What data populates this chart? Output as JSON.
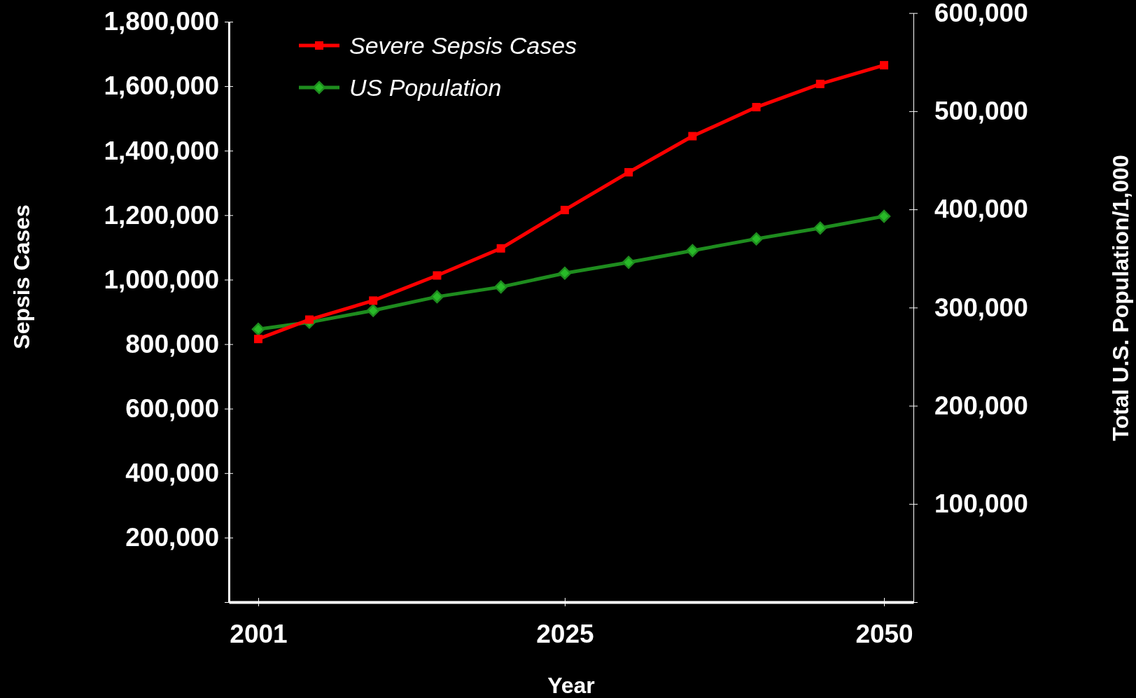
{
  "chart_data": {
    "type": "line",
    "xlabel": "Year",
    "ylabel": "Sepsis Cases",
    "y2label": "Total U.S. Population/1,000",
    "x": [
      2001,
      2005,
      2010,
      2015,
      2020,
      2025,
      2030,
      2035,
      2040,
      2045,
      2050
    ],
    "xlim": [
      1998.7,
      2052.3
    ],
    "xticks": [
      2001,
      2025,
      2050
    ],
    "ylim": [
      0,
      1800000
    ],
    "yticks": [
      {
        "value": 0,
        "label": null
      },
      {
        "value": 200000,
        "label": "200,000"
      },
      {
        "value": 400000,
        "label": "400,000"
      },
      {
        "value": 600000,
        "label": "600,000"
      },
      {
        "value": 800000,
        "label": "800,000"
      },
      {
        "value": 1000000,
        "label": "1,000,000"
      },
      {
        "value": 1200000,
        "label": "1,200,000"
      },
      {
        "value": 1400000,
        "label": "1,400,000"
      },
      {
        "value": 1600000,
        "label": "1,600,000"
      },
      {
        "value": 1800000,
        "label": "1,800,000"
      }
    ],
    "y2lim": [
      0,
      600000
    ],
    "y2ticks": [
      {
        "value": 0,
        "label": null
      },
      {
        "value": 100000,
        "label": "100,000"
      },
      {
        "value": 200000,
        "label": "200,000"
      },
      {
        "value": 300000,
        "label": "300,000"
      },
      {
        "value": 400000,
        "label": "400,000"
      },
      {
        "value": 500000,
        "label": "500,000"
      },
      {
        "value": 600000,
        "label": "600,000"
      }
    ],
    "legend": "top left",
    "series": [
      {
        "name": "Severe Sepsis Cases",
        "color": "#ff0000",
        "marker": "square",
        "values": [
          816000,
          876000,
          935000,
          1013000,
          1097000,
          1216000,
          1333000,
          1445000,
          1535000,
          1607000,
          1665000
        ]
      },
      {
        "name": "US Population",
        "color": "#1e8c1e",
        "marker": "diamond",
        "axis": "y2",
        "values": [
          278000,
          285000,
          297000,
          311000,
          321000,
          335000,
          346000,
          358000,
          370000,
          381000,
          393000
        ]
      }
    ]
  }
}
